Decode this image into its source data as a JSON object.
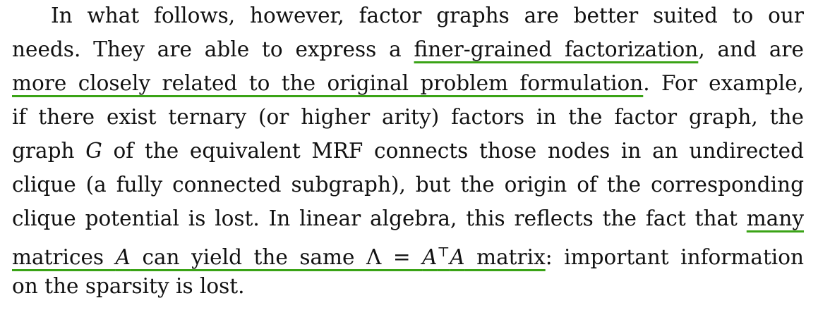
{
  "highlight_color": "#3aa316",
  "paragraph": {
    "l1": "In what follows, however, factor graphs are better suited to our",
    "l2_a": "needs. They are able to express a ",
    "l2_hl": "finer-grained factorization",
    "l2_b": ", and are",
    "l3_hl": "more closely related to the original problem formulation",
    "l3_b": ". For example,",
    "l4": "if there exist ternary (or higher arity) factors in the factor graph, the",
    "l5_a": "graph ",
    "l5_math": "G",
    "l5_b": " of the equivalent MRF connects those nodes in an undirected",
    "l6": "clique (a fully connected subgraph), but the origin of the corresponding",
    "l7_a": "clique potential is lost. In linear algebra, this reflects the fact that ",
    "l7_hl": "many",
    "l8_hl_a": "matrices ",
    "l8_hl_math1": "A",
    "l8_hl_b": " can yield the same Λ = ",
    "l8_hl_math2": "A",
    "l8_hl_sup": "⊤",
    "l8_hl_math3": "A",
    "l8_hl_c": " matrix",
    "l8_b": ": important information",
    "l9": "on the sparsity is lost."
  }
}
